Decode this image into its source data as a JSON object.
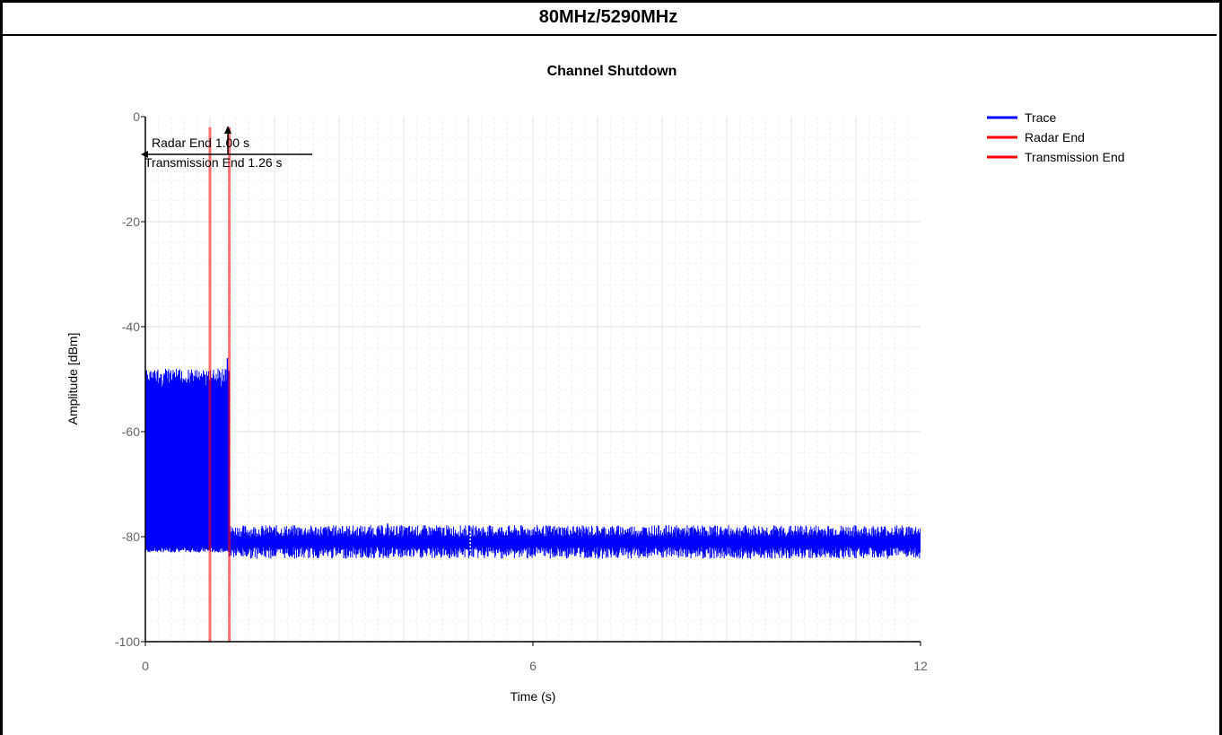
{
  "header": {
    "title": "80MHz/5290MHz"
  },
  "chart_data": {
    "type": "line",
    "title": "Channel Shutdown",
    "xlabel": "Time (s)",
    "ylabel": "Amplitude [dBm]",
    "xlim": [
      0,
      12
    ],
    "ylim": [
      -100,
      0
    ],
    "x_ticks": [
      "0",
      "6",
      "12"
    ],
    "y_ticks": [
      "0",
      "-20",
      "-40",
      "-60",
      "-80",
      "-100"
    ],
    "grid": true,
    "legend_position": "top-right",
    "series": [
      {
        "name": "Trace",
        "color": "#0000FF",
        "segments": [
          {
            "x_start": 0,
            "x_end": 1.3,
            "y_min": -83,
            "y_max": -48,
            "description": "dense noise band"
          },
          {
            "x_start": 1.3,
            "x_end": 12,
            "y_min": -83,
            "y_max": -79,
            "description": "noise floor"
          }
        ],
        "peaks": [
          {
            "x": 1.27,
            "y": -46
          },
          {
            "x": 3.05,
            "y": -78
          },
          {
            "x": 3.75,
            "y": -77.5
          }
        ]
      },
      {
        "name": "Radar End",
        "color": "#FF0000",
        "x": 1.0
      },
      {
        "name": "Transmission End",
        "color": "#FF0000",
        "x": 1.3
      }
    ],
    "annotations": [
      {
        "text": "Radar End 1.00 s"
      },
      {
        "text": "Transmission End 1.26 s"
      }
    ]
  }
}
